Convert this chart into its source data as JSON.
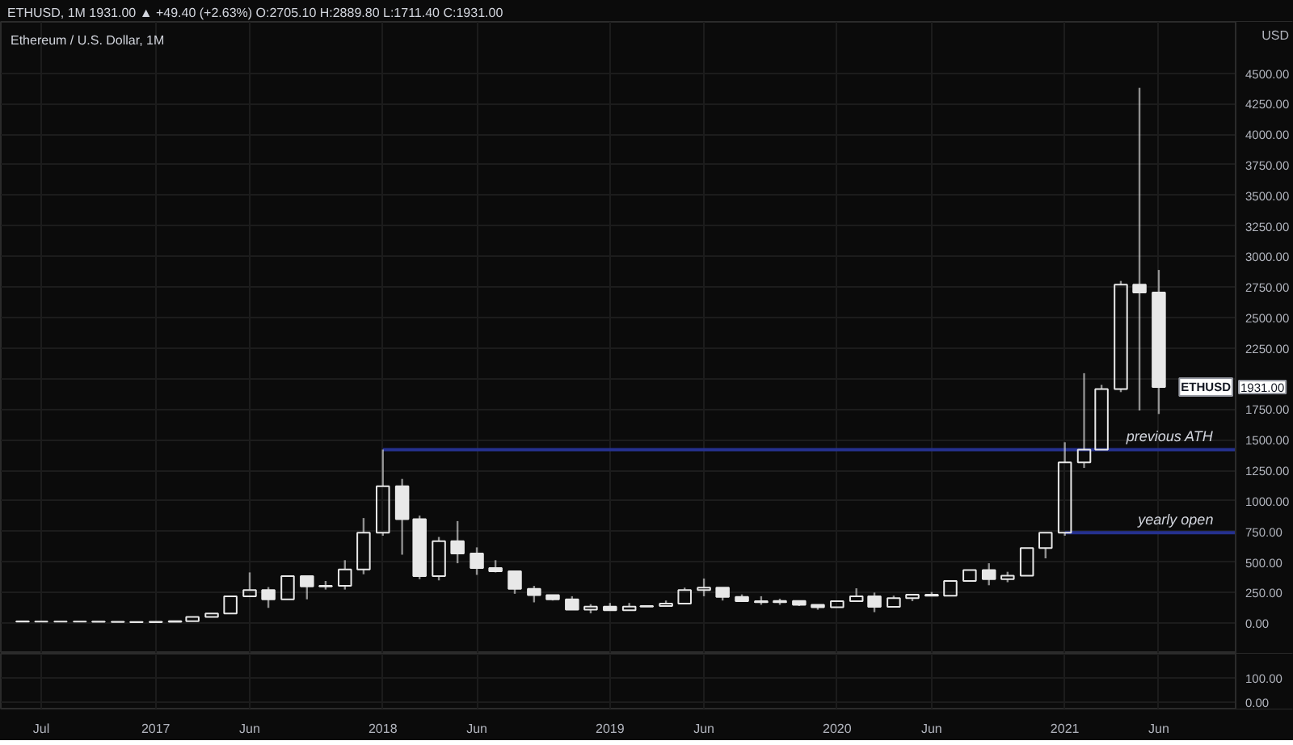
{
  "chart_data": [
    {
      "type": "candlestick",
      "title": "ETHUSD, 1M 1931.00 ▲ +49.40 (+2.63%) O:2705.10 H:2889.80 L:1711.40 C:1931.00",
      "subtitle": "Ethereum / U.S. Dollar, 1M",
      "ylabel": "USD",
      "color": "#e8e8e8",
      "x": [
        "2016-06",
        "2016-07",
        "2016-08",
        "2016-09",
        "2016-10",
        "2016-11",
        "2016-12",
        "2017-01",
        "2017-02",
        "2017-03",
        "2017-04",
        "2017-05",
        "2017-06",
        "2017-07",
        "2017-08",
        "2017-09",
        "2017-10",
        "2017-11",
        "2017-12",
        "2018-01",
        "2018-02",
        "2018-03",
        "2018-04",
        "2018-05",
        "2018-06",
        "2018-07",
        "2018-08",
        "2018-09",
        "2018-10",
        "2018-11",
        "2018-12",
        "2019-01",
        "2019-02",
        "2019-03",
        "2019-04",
        "2019-05",
        "2019-06",
        "2019-07",
        "2019-08",
        "2019-09",
        "2019-10",
        "2019-11",
        "2019-12",
        "2020-01",
        "2020-02",
        "2020-03",
        "2020-04",
        "2020-05",
        "2020-06",
        "2020-07",
        "2020-08",
        "2020-09",
        "2020-10",
        "2020-11",
        "2020-12",
        "2021-01",
        "2021-02",
        "2021-03",
        "2021-04",
        "2021-05",
        "2021-06"
      ],
      "ohlc": [
        [
          14,
          14,
          12,
          12
        ],
        [
          12,
          13,
          12,
          13
        ],
        [
          13,
          13,
          12,
          12
        ],
        [
          12,
          13,
          12,
          13
        ],
        [
          13,
          13,
          11,
          11
        ],
        [
          11,
          11,
          9,
          9
        ],
        [
          9,
          9,
          8,
          8
        ],
        [
          8,
          11,
          8,
          11
        ],
        [
          11,
          16,
          11,
          16
        ],
        [
          16,
          50,
          16,
          50
        ],
        [
          50,
          79,
          50,
          79
        ],
        [
          79,
          220,
          79,
          220
        ],
        [
          220,
          415,
          220,
          270
        ],
        [
          270,
          295,
          125,
          195
        ],
        [
          195,
          385,
          195,
          385
        ],
        [
          385,
          385,
          195,
          300
        ],
        [
          300,
          345,
          275,
          305
        ],
        [
          305,
          515,
          275,
          440
        ],
        [
          440,
          860,
          400,
          740
        ],
        [
          740,
          1420,
          715,
          1120
        ],
        [
          1120,
          1180,
          560,
          850
        ],
        [
          850,
          880,
          360,
          385
        ],
        [
          385,
          705,
          350,
          670
        ],
        [
          670,
          835,
          490,
          570
        ],
        [
          570,
          620,
          395,
          450
        ],
        [
          450,
          515,
          415,
          425
        ],
        [
          425,
          425,
          240,
          280
        ],
        [
          280,
          305,
          170,
          230
        ],
        [
          230,
          230,
          185,
          195
        ],
        [
          195,
          220,
          110,
          110
        ],
        [
          110,
          155,
          80,
          135
        ],
        [
          135,
          165,
          105,
          105
        ],
        [
          105,
          165,
          105,
          135
        ],
        [
          135,
          140,
          135,
          140
        ],
        [
          140,
          185,
          140,
          160
        ],
        [
          160,
          290,
          160,
          270
        ],
        [
          270,
          365,
          220,
          290
        ],
        [
          290,
          290,
          185,
          215
        ],
        [
          215,
          235,
          180,
          180
        ],
        [
          180,
          220,
          150,
          172
        ],
        [
          172,
          200,
          150,
          182
        ],
        [
          182,
          182,
          140,
          150
        ],
        [
          150,
          150,
          110,
          130
        ],
        [
          130,
          185,
          130,
          180
        ],
        [
          180,
          285,
          180,
          220
        ],
        [
          220,
          250,
          90,
          133
        ],
        [
          133,
          225,
          133,
          205
        ],
        [
          205,
          232,
          180,
          232
        ],
        [
          232,
          255,
          225,
          225
        ],
        [
          225,
          345,
          225,
          345
        ],
        [
          345,
          435,
          345,
          435
        ],
        [
          435,
          490,
          310,
          360
        ],
        [
          360,
          420,
          335,
          388
        ],
        [
          388,
          615,
          388,
          615
        ],
        [
          615,
          740,
          530,
          740
        ],
        [
          740,
          1480,
          715,
          1315
        ],
        [
          1315,
          2045,
          1270,
          1420
        ],
        [
          1420,
          1950,
          1420,
          1915
        ],
        [
          1915,
          2800,
          1890,
          2770
        ],
        [
          2770,
          4380,
          1740,
          2705.1
        ],
        [
          2705.1,
          2889.8,
          1711.4,
          1931
        ]
      ],
      "series": [
        {
          "type": "line",
          "name": "previous ATH",
          "x": [
            "2018-01",
            "2021-10-03"
          ],
          "values": [
            1420,
            1420
          ],
          "color": "#25318f"
        },
        {
          "type": "line",
          "name": "yearly open",
          "x": [
            "2021-01",
            "2021-10-03"
          ],
          "values": [
            740,
            740
          ],
          "color": "#25318f"
        }
      ],
      "annotations": [
        {
          "text": "ETHUSD",
          "y": 1931
        },
        "1931.00"
      ],
      "xlim": [
        "2016-04-27",
        "2022-01-04"
      ],
      "xticks": [
        {
          "value": "2016-07",
          "label": null
        },
        {
          "value": "2017-01",
          "label": null
        },
        {
          "value": "2017-06",
          "label": null
        },
        {
          "value": "2018-01",
          "label": null
        },
        {
          "value": "2018-06",
          "label": null
        },
        {
          "value": "2019-01",
          "label": null
        },
        {
          "value": "2019-06",
          "label": null
        },
        {
          "value": "2020-01",
          "label": null
        },
        {
          "value": "2020-06",
          "label": null
        },
        {
          "value": "2021-01",
          "label": null
        },
        {
          "value": "2021-06",
          "label": null
        }
      ],
      "ylim": [
        -250,
        4920
      ],
      "yticks": [
        {
          "value": 0,
          "label": "0.00"
        },
        {
          "value": 250,
          "label": "250.00"
        },
        {
          "value": 500,
          "label": "500.00"
        },
        {
          "value": 750,
          "label": "750.00"
        },
        {
          "value": 1000,
          "label": "1000.00"
        },
        {
          "value": 1250,
          "label": "1250.00"
        },
        {
          "value": 1500,
          "label": "1500.00"
        },
        {
          "value": 1750,
          "label": "1750.00"
        },
        {
          "value": 2000,
          "label": null
        },
        {
          "value": 2250,
          "label": "2250.00"
        },
        {
          "value": 2500,
          "label": "2500.00"
        },
        {
          "value": 2750,
          "label": "2750.00"
        },
        {
          "value": 3000,
          "label": "3000.00"
        },
        {
          "value": 3250,
          "label": "3250.00"
        },
        {
          "value": 3500,
          "label": "3500.00"
        },
        {
          "value": 3750,
          "label": "3750.00"
        },
        {
          "value": 4000,
          "label": "4000.00"
        },
        {
          "value": 4250,
          "label": "4250.00"
        },
        {
          "value": 4500,
          "label": "4500.00"
        }
      ],
      "grid": true,
      "tick_labels": "y"
    },
    {
      "type": "line",
      "xlim": [
        "2016-04-27",
        "2022-01-04"
      ],
      "xticks": [
        {
          "value": "2016-07",
          "label": "Jul"
        },
        {
          "value": "2017-01",
          "label": "2017"
        },
        {
          "value": "2017-06",
          "label": "Jun"
        },
        {
          "value": "2018-01",
          "label": "2018"
        },
        {
          "value": "2018-06",
          "label": "Jun"
        },
        {
          "value": "2019-01",
          "label": "2019"
        },
        {
          "value": "2019-06",
          "label": "Jun"
        },
        {
          "value": "2020-01",
          "label": "2020"
        },
        {
          "value": "2020-06",
          "label": "Jun"
        },
        {
          "value": "2021-01",
          "label": "2021"
        },
        {
          "value": "2021-06",
          "label": "Jun"
        }
      ],
      "ylim": [
        -25,
        200
      ],
      "yticks": [
        {
          "value": 100,
          "label": "100.00"
        },
        {
          "value": 0,
          "label": "0.00"
        }
      ],
      "grid": true
    }
  ]
}
